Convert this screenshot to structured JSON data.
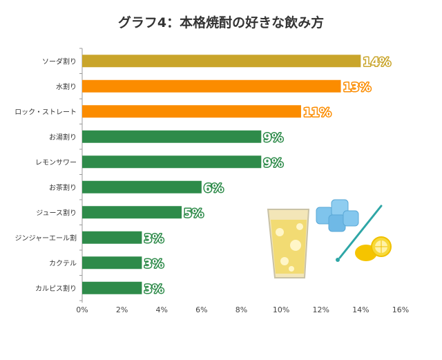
{
  "title": "グラフ4：本格焼酎の好きな飲み方",
  "chart_data": {
    "type": "bar",
    "orientation": "horizontal",
    "title": "グラフ4：本格焼酎の好きな飲み方",
    "categories": [
      "ソーダ割り",
      "水割り",
      "ロック・ストレート",
      "お湯割り",
      "レモンサワー",
      "お茶割り",
      "ジュース割り",
      "ジンジャーエール割",
      "カクテル",
      "カルピス割り"
    ],
    "values": [
      14,
      13,
      11,
      9,
      9,
      6,
      5,
      3,
      3,
      3
    ],
    "value_labels": [
      "14%",
      "13%",
      "11%",
      "9%",
      "9%",
      "6%",
      "5%",
      "3%",
      "3%",
      "3%"
    ],
    "bar_colors": [
      "#c9a52b",
      "#fb8c00",
      "#fb8c00",
      "#2e8b4a",
      "#2e8b4a",
      "#2e8b4a",
      "#2e8b4a",
      "#2e8b4a",
      "#2e8b4a",
      "#2e8b4a"
    ],
    "xlim": [
      0,
      16
    ],
    "xticks": [
      "0%",
      "2%",
      "4%",
      "6%",
      "8%",
      "10%",
      "12%",
      "14%",
      "16%"
    ],
    "grid": false,
    "xlabel": "",
    "ylabel": ""
  }
}
